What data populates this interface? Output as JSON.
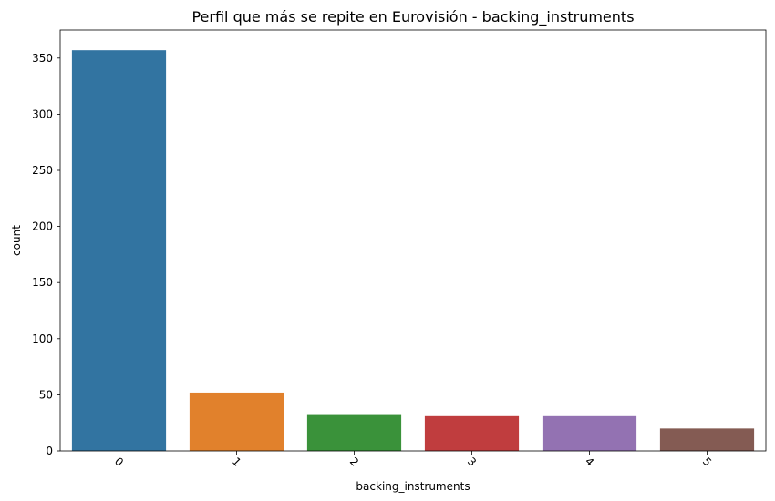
{
  "chart_data": {
    "type": "bar",
    "title": "Perfil que más se repite en Eurovisión - backing_instruments",
    "xlabel": "backing_instruments",
    "ylabel": "count",
    "categories": [
      "0",
      "1",
      "2",
      "3",
      "4",
      "5"
    ],
    "values": [
      357,
      52,
      32,
      31,
      31,
      20
    ],
    "colors": [
      "#3274a1",
      "#e1812c",
      "#3a923a",
      "#c03d3e",
      "#9372b2",
      "#845b53"
    ],
    "ylim": [
      0,
      375
    ],
    "yticks": [
      0,
      50,
      100,
      150,
      200,
      250,
      300,
      350
    ],
    "xtick_rotation": 45,
    "grid": false
  }
}
